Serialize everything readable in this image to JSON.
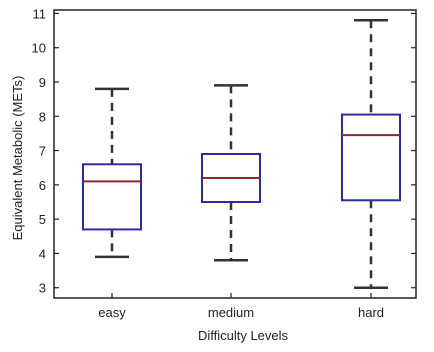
{
  "chart_data": {
    "type": "box",
    "xlabel": "Difficulty Levels",
    "ylabel": "Equivalent Metabolic (METs)",
    "ylim": [
      2.7,
      11.1
    ],
    "yticks": [
      3,
      4,
      5,
      6,
      7,
      8,
      9,
      10,
      11
    ],
    "grid": false,
    "categories": [
      "easy",
      "medium",
      "hard"
    ],
    "boxes": [
      {
        "category": "easy",
        "min": 3.9,
        "q1": 4.7,
        "median": 6.1,
        "q3": 6.6,
        "max": 8.8
      },
      {
        "category": "medium",
        "min": 3.8,
        "q1": 5.5,
        "median": 6.2,
        "q3": 6.9,
        "max": 8.9
      },
      {
        "category": "hard",
        "min": 3.0,
        "q1": 5.55,
        "median": 7.45,
        "q3": 8.05,
        "max": 10.8
      }
    ],
    "colors": {
      "box": "#2b2ba3",
      "median": "#8b2a2a",
      "whisker": "#333333",
      "axis": "#222222"
    }
  }
}
